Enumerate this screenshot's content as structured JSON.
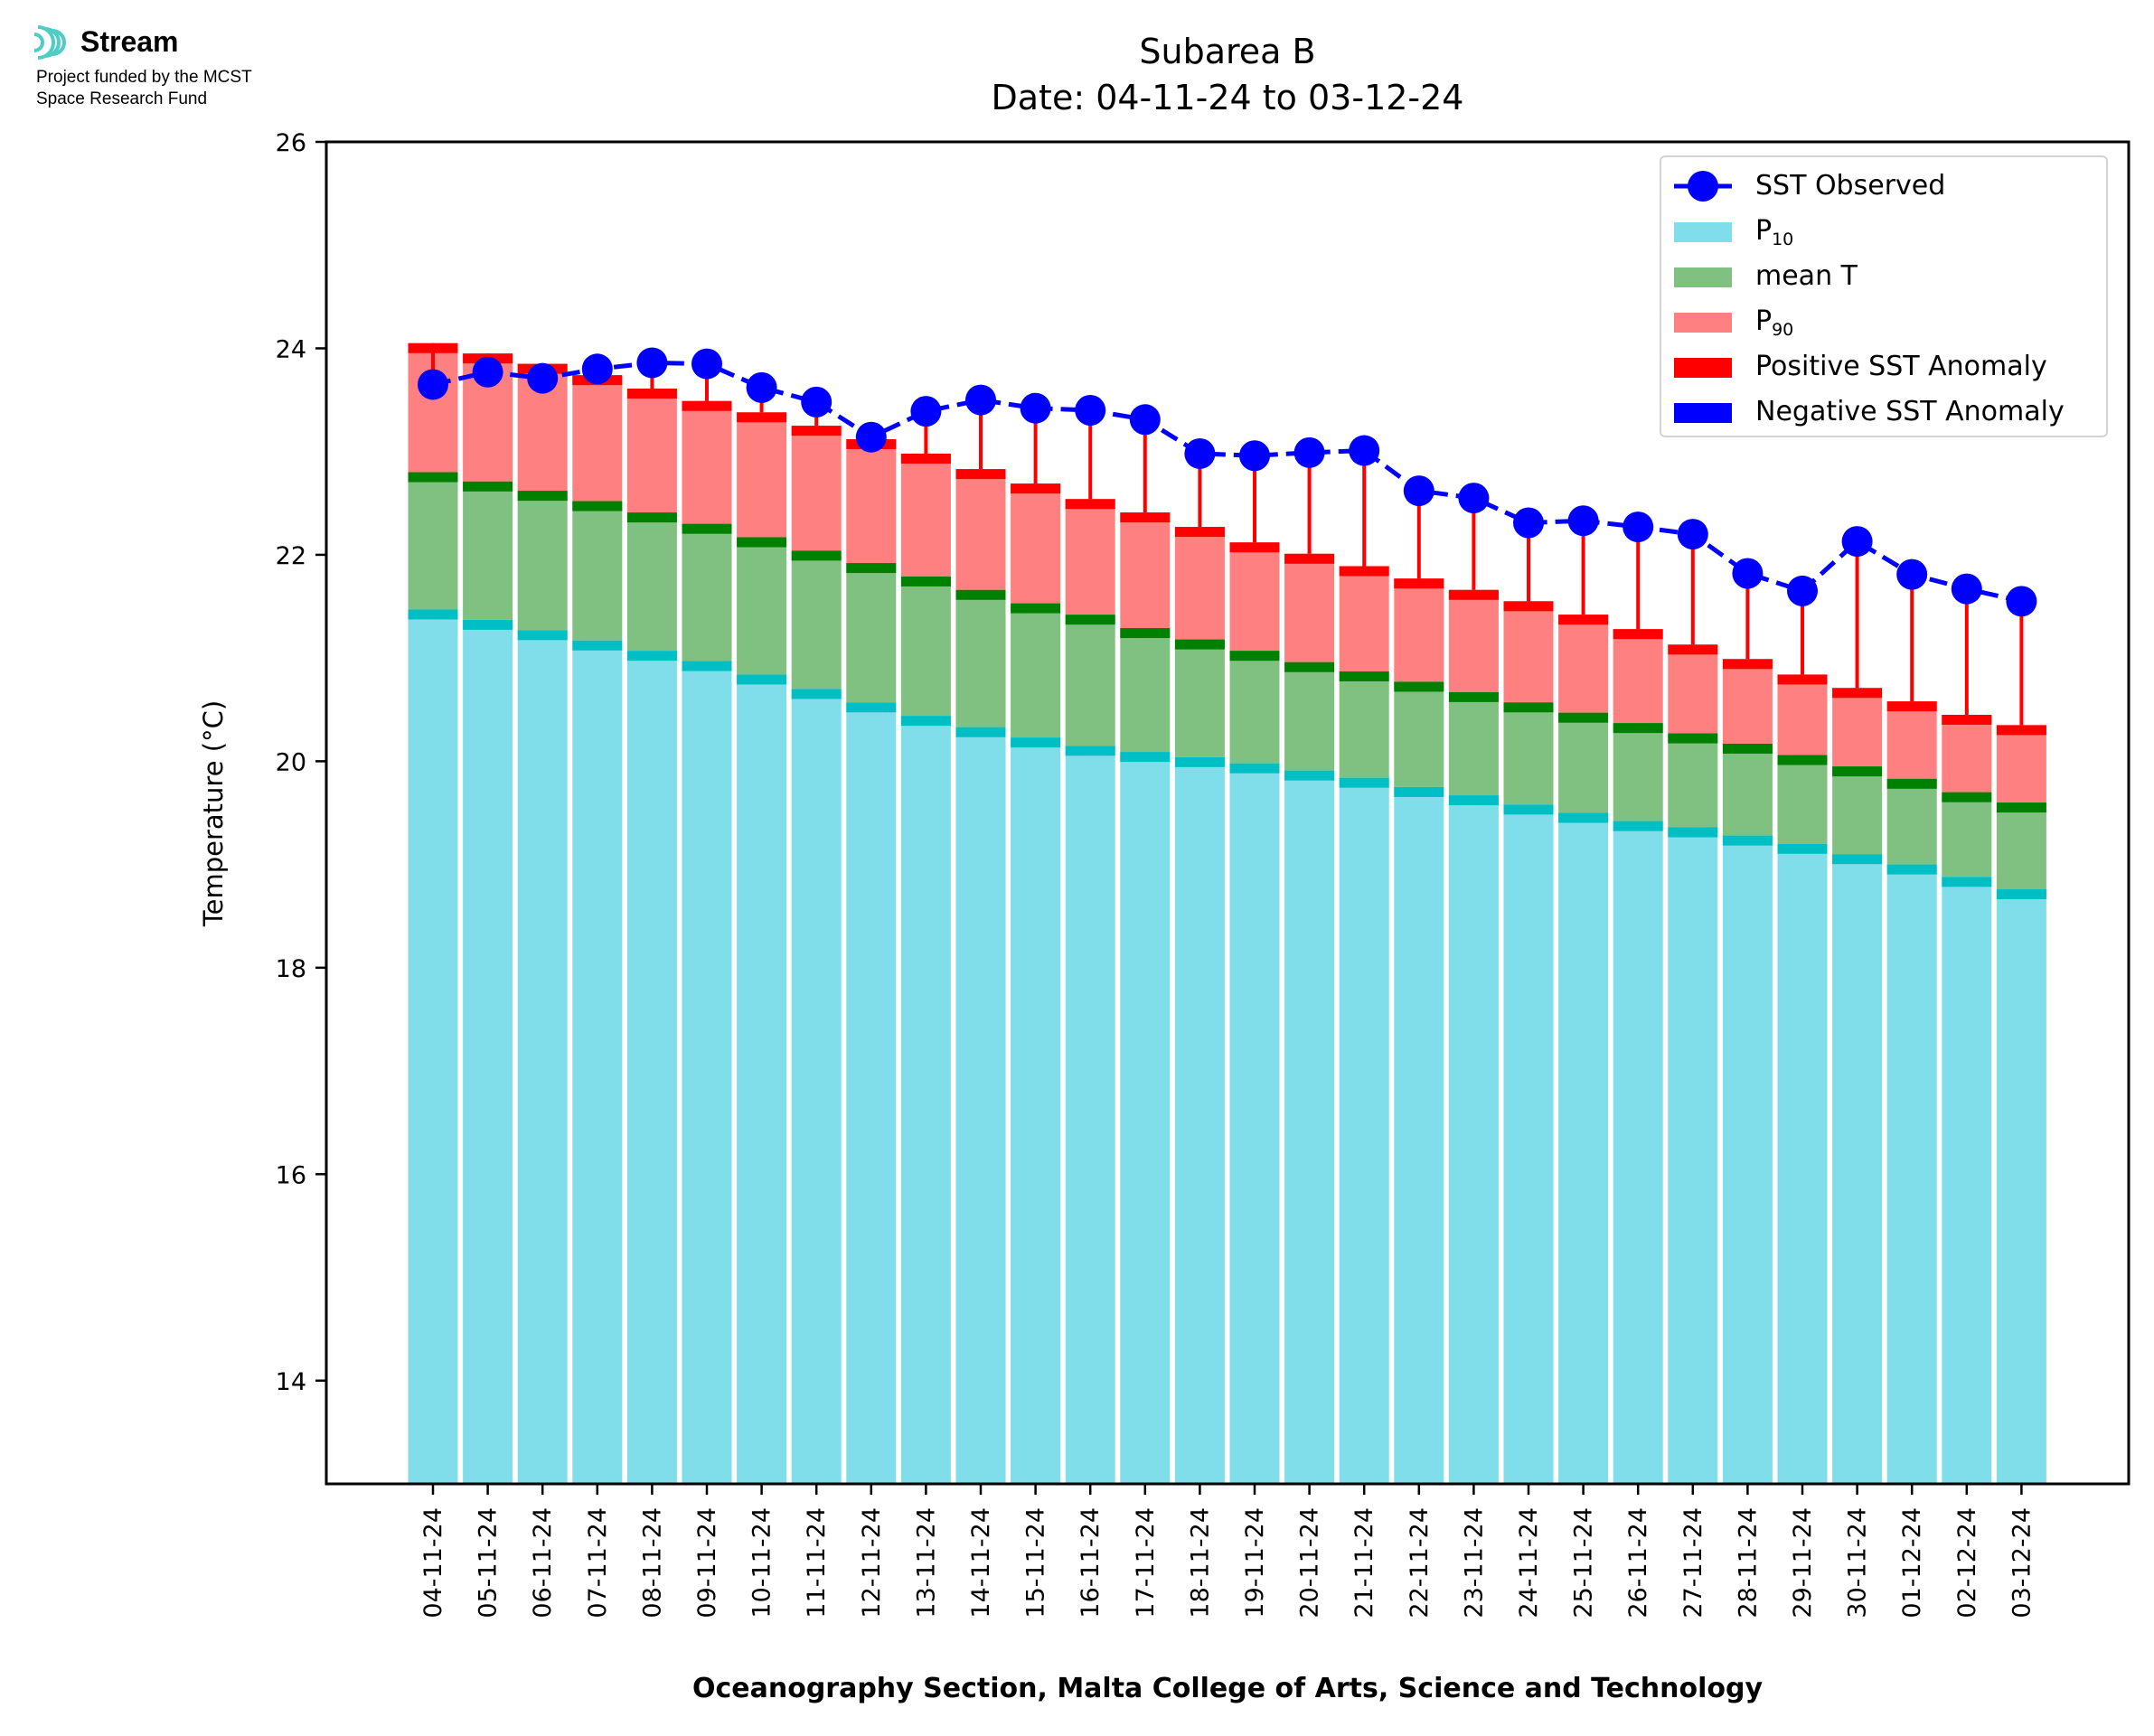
{
  "logo": {
    "name": "Stream",
    "funded_line1": "Project funded by the MCST",
    "funded_line2": "Space Research Fund"
  },
  "chart_data": {
    "type": "bar",
    "title": "Subarea B",
    "subtitle": "Date: 04-11-24 to 03-12-24",
    "xlabel": "Oceanography Section, Malta College of Arts, Science and Technology",
    "ylabel": "Temperature (°C)",
    "ylim": [
      13,
      26
    ],
    "yticks": [
      14,
      16,
      18,
      20,
      22,
      24,
      26
    ],
    "grid": false,
    "legend_position": "top-right",
    "categories": [
      "04-11-24",
      "05-11-24",
      "06-11-24",
      "07-11-24",
      "08-11-24",
      "09-11-24",
      "10-11-24",
      "11-11-24",
      "12-11-24",
      "13-11-24",
      "14-11-24",
      "15-11-24",
      "16-11-24",
      "17-11-24",
      "18-11-24",
      "19-11-24",
      "20-11-24",
      "21-11-24",
      "22-11-24",
      "23-11-24",
      "24-11-24",
      "25-11-24",
      "26-11-24",
      "27-11-24",
      "28-11-24",
      "29-11-24",
      "30-11-24",
      "01-12-24",
      "02-12-24",
      "03-12-24"
    ],
    "series": [
      {
        "name": "SST Observed",
        "type": "line",
        "color": "#0000ff",
        "values": [
          23.65,
          23.77,
          23.71,
          23.8,
          23.86,
          23.85,
          23.62,
          23.48,
          23.14,
          23.39,
          23.5,
          23.42,
          23.4,
          23.31,
          22.98,
          22.96,
          22.99,
          23.01,
          22.62,
          22.55,
          22.31,
          22.33,
          22.27,
          22.2,
          21.82,
          21.65,
          22.13,
          21.81,
          21.67,
          21.55
        ]
      },
      {
        "name": "P10",
        "color": "#80deea",
        "values": [
          21.47,
          21.37,
          21.27,
          21.17,
          21.07,
          20.97,
          20.84,
          20.7,
          20.57,
          20.44,
          20.33,
          20.23,
          20.15,
          20.09,
          20.04,
          19.98,
          19.91,
          19.84,
          19.75,
          19.67,
          19.58,
          19.5,
          19.42,
          19.36,
          19.28,
          19.2,
          19.1,
          19.0,
          18.88,
          18.76
        ]
      },
      {
        "name": "mean T",
        "color": "#80c080",
        "values": [
          22.8,
          22.71,
          22.62,
          22.52,
          22.41,
          22.3,
          22.17,
          22.04,
          21.92,
          21.79,
          21.66,
          21.53,
          21.42,
          21.29,
          21.18,
          21.07,
          20.96,
          20.87,
          20.77,
          20.67,
          20.57,
          20.47,
          20.37,
          20.27,
          20.17,
          20.06,
          19.95,
          19.83,
          19.7,
          19.6
        ]
      },
      {
        "name": "P90",
        "color": "#ff8080",
        "values": [
          24.05,
          23.95,
          23.85,
          23.74,
          23.61,
          23.49,
          23.38,
          23.25,
          23.12,
          22.98,
          22.83,
          22.69,
          22.54,
          22.41,
          22.27,
          22.12,
          22.01,
          21.89,
          21.77,
          21.66,
          21.55,
          21.42,
          21.28,
          21.13,
          20.99,
          20.84,
          20.71,
          20.58,
          20.45,
          20.35
        ]
      }
    ],
    "legend": [
      {
        "label": "SST Observed",
        "kind": "line-marker",
        "color": "#0000ff"
      },
      {
        "label": "P",
        "sub": "10",
        "kind": "patch",
        "color": "#80deea"
      },
      {
        "label": "mean T",
        "kind": "patch",
        "color": "#80c080"
      },
      {
        "label": "P",
        "sub": "90",
        "kind": "patch",
        "color": "#ff8080"
      },
      {
        "label": "Positive SST Anomaly",
        "kind": "patch",
        "color": "#ff0000"
      },
      {
        "label": "Negative SST Anomaly",
        "kind": "patch",
        "color": "#0000ff"
      }
    ],
    "colors": {
      "p10_cap": "#00bfc4",
      "mean_cap": "#008000",
      "p90_cap": "#ff0000",
      "anomaly_line": "#ff0000"
    }
  }
}
